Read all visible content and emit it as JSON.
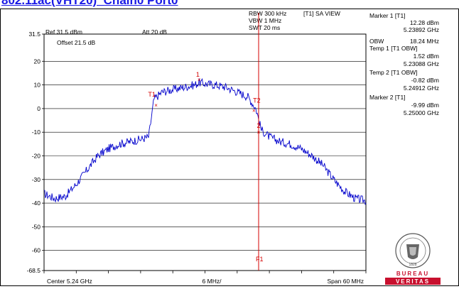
{
  "title": "802.11ac(VHT20)_Chain0 Port0",
  "header": {
    "rbw": "RBW 300 kHz",
    "vbw": "VBW 1 MHz",
    "swt": "SWT 20 ms",
    "mode": "[T1] SA VIEW",
    "ref": "Ref 31.5 dBm",
    "att": "Att 20 dB",
    "offset": "Offset 21.5 dB"
  },
  "markers": {
    "marker1_label": "Marker 1 [T1]",
    "marker1_level": "12.28 dBm",
    "marker1_freq": "5.23892 GHz",
    "obw_label": "OBW",
    "obw_value": "18.24 MHz",
    "temp1_label": "Temp 1 [T1 OBW]",
    "temp1_level": "1.52 dBm",
    "temp1_freq": "5.23088 GHz",
    "temp2_label": "Temp 2 [T1 OBW]",
    "temp2_level": "-0.82 dBm",
    "temp2_freq": "5.24912 GHz",
    "marker2_label": "Marker 2 [T1]",
    "marker2_level": "-9.99 dBm",
    "marker2_freq": "5.25000 GHz"
  },
  "logo": {
    "top_text": "BUREAU VERITAS",
    "year": "1828",
    "bottom_text": "BUREAU",
    "bottom_text2": "VERITAS",
    "color": "#c8102e"
  },
  "chart_data": {
    "type": "line",
    "xlabel_left": "Center 5.24 GHz",
    "xlabel_mid": "6 MHz/",
    "xlabel_right": "Span 60 MHz",
    "x_start_ghz": 5.21,
    "x_stop_ghz": 5.27,
    "ylim": [
      -68.5,
      31.5
    ],
    "y_ticks": [
      31.5,
      20,
      10,
      0,
      -10,
      -20,
      -30,
      -40,
      -50,
      -60,
      -68.5
    ],
    "y_tick_labels": [
      "31.5",
      "20",
      "10",
      "0",
      "-10",
      "-20",
      "-30",
      "-40",
      "-50",
      "-60",
      "-68.5"
    ],
    "grid": true,
    "trace_color": "#0000cc",
    "marker_color": "#d40000",
    "vline": {
      "x_ghz": 5.25,
      "label": "F1"
    },
    "series": [
      {
        "x_ghz": [
          5.21,
          5.212,
          5.214,
          5.216,
          5.218,
          5.22,
          5.222,
          5.224,
          5.226,
          5.228,
          5.2295,
          5.2305,
          5.232,
          5.234,
          5.236,
          5.238,
          5.239,
          5.24,
          5.242,
          5.244,
          5.246,
          5.248,
          5.2495,
          5.2505,
          5.252,
          5.254,
          5.256,
          5.258,
          5.26,
          5.262,
          5.264,
          5.266,
          5.268,
          5.27
        ],
        "y_dbm": [
          -36,
          -38,
          -37,
          -32,
          -26,
          -20,
          -17,
          -15,
          -14,
          -13,
          -12,
          4,
          7,
          8,
          9,
          10,
          11,
          10.5,
          10,
          9,
          7,
          5,
          0,
          -9,
          -12,
          -14,
          -15,
          -17,
          -20,
          -24,
          -30,
          -35,
          -38,
          -39
        ]
      }
    ],
    "markers": [
      {
        "label": "1",
        "x_ghz": 5.23892,
        "y_dbm": 12.28
      },
      {
        "label": "T1",
        "x_ghz": 5.23088,
        "y_dbm": 1.52
      },
      {
        "label": "T2",
        "x_ghz": 5.24912,
        "y_dbm": -0.82
      },
      {
        "label": "2",
        "x_ghz": 5.25,
        "y_dbm": -9.99
      }
    ]
  }
}
